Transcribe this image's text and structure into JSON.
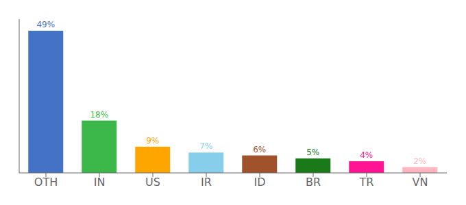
{
  "chart_data": {
    "type": "bar",
    "categories": [
      "OTH",
      "IN",
      "US",
      "IR",
      "ID",
      "BR",
      "TR",
      "VN"
    ],
    "values": [
      49,
      18,
      9,
      7,
      6,
      5,
      4,
      2
    ],
    "value_labels": [
      "49%",
      "18%",
      "9%",
      "7%",
      "6%",
      "5%",
      "4%",
      "2%"
    ],
    "colors": [
      "#4472C4",
      "#3CB84A",
      "#FFA500",
      "#87CEEB",
      "#A0522D",
      "#1A7A1A",
      "#FF1493",
      "#FFB6C1"
    ],
    "ylim": [
      0,
      53
    ],
    "data_labels": true,
    "tick_labels": "x"
  }
}
